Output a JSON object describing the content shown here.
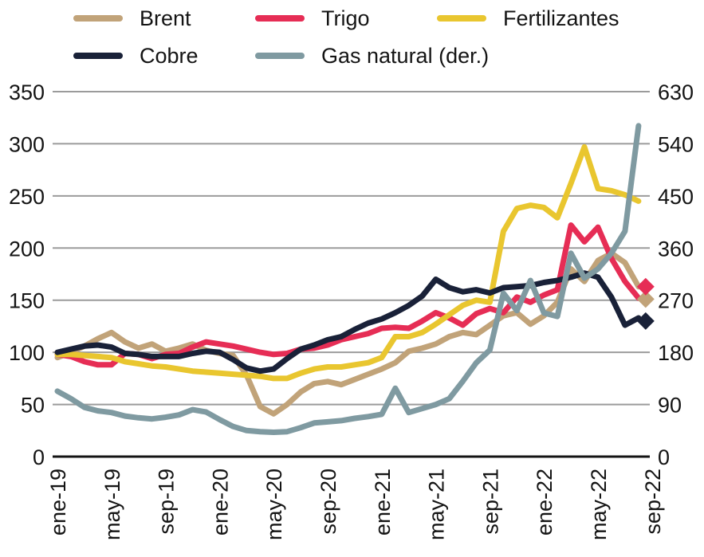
{
  "legend": {
    "items": [
      {
        "label": "Brent",
        "color": "#c1a379"
      },
      {
        "label": "Trigo",
        "color": "#e62d55"
      },
      {
        "label": "Fertilizantes",
        "color": "#e9c62f"
      },
      {
        "label": "Cobre",
        "color": "#192138"
      },
      {
        "label": "Gas natural (der.)",
        "color": "#7f9aa1"
      }
    ]
  },
  "chart_data": {
    "type": "line",
    "x_tick_labels": [
      "ene-19",
      "may-19",
      "sep-19",
      "ene-20",
      "may-20",
      "sep-20",
      "ene-21",
      "may-21",
      "sep-21",
      "ene-22",
      "may-22",
      "sep-22"
    ],
    "x_tick_month_indices": [
      0,
      4,
      8,
      12,
      16,
      20,
      24,
      28,
      32,
      36,
      40,
      44
    ],
    "months_span": "ene-19 to ago-22 lines (44 monthly points), sep-22 shown as diamond marker",
    "left_axis": {
      "ticks": [
        0,
        50,
        100,
        150,
        200,
        250,
        300,
        350
      ],
      "min": 0,
      "max": 350
    },
    "right_axis": {
      "ticks": [
        0,
        90,
        180,
        270,
        360,
        450,
        540,
        630
      ],
      "min": 0,
      "max": 630
    },
    "grid": "horizontal gridlines at every left tick",
    "legend_position": "top",
    "colors": {
      "gridline": "#9b9b9b",
      "axis_line": "#141414",
      "text": "#141414"
    },
    "series": [
      {
        "name": "Brent",
        "axis": "left",
        "color": "#c1a379",
        "values": [
          95,
          100,
          106,
          113,
          119,
          110,
          104,
          108,
          101,
          104,
          108,
          102,
          99,
          97,
          78,
          48,
          41,
          50,
          62,
          70,
          72,
          69,
          74,
          79,
          84,
          90,
          101,
          104,
          108,
          115,
          119,
          117,
          126,
          135,
          138,
          127,
          135,
          148,
          180,
          168,
          188,
          195,
          186,
          163
        ],
        "latest_diamond": 151
      },
      {
        "name": "Trigo",
        "axis": "left",
        "color": "#e62d55",
        "values": [
          98,
          96,
          91,
          88,
          88,
          99,
          98,
          94,
          98,
          99,
          105,
          110,
          108,
          106,
          103,
          100,
          98,
          99,
          103,
          104,
          107,
          112,
          115,
          118,
          123,
          124,
          123,
          130,
          138,
          133,
          126,
          137,
          142,
          138,
          153,
          148,
          155,
          160,
          222,
          206,
          220,
          190,
          168,
          152
        ],
        "latest_diamond": 163
      },
      {
        "name": "Fertilizantes",
        "axis": "left",
        "color": "#e9c62f",
        "values": [
          98,
          98,
          97,
          96,
          95,
          91,
          89,
          87,
          86,
          84,
          82,
          81,
          80,
          79,
          78,
          77,
          75,
          75,
          80,
          84,
          86,
          86,
          88,
          90,
          95,
          115,
          115,
          119,
          127,
          136,
          145,
          150,
          148,
          216,
          238,
          241,
          239,
          229,
          262,
          297,
          257,
          255,
          251,
          245
        ],
        "latest_diamond": null
      },
      {
        "name": "Cobre",
        "axis": "left",
        "color": "#192138",
        "values": [
          100,
          103,
          106,
          107,
          105,
          99,
          98,
          96,
          96,
          96,
          99,
          101,
          100,
          93,
          85,
          82,
          84,
          94,
          103,
          107,
          112,
          115,
          122,
          128,
          132,
          138,
          145,
          154,
          170,
          162,
          158,
          160,
          157,
          162,
          163,
          164,
          167,
          169,
          172,
          176,
          172,
          153,
          126,
          133
        ],
        "latest_diamond": 130
      },
      {
        "name": "Gas natural (der.)",
        "axis": "right",
        "color": "#7f9aa1",
        "values": [
          113,
          100,
          85,
          79,
          76,
          70,
          67,
          65,
          68,
          72,
          81,
          77,
          64,
          52,
          45,
          43,
          42,
          43,
          50,
          58,
          60,
          62,
          66,
          69,
          73,
          118,
          76,
          83,
          90,
          100,
          130,
          162,
          184,
          282,
          252,
          304,
          248,
          242,
          351,
          308,
          324,
          351,
          389,
          571
        ],
        "latest_diamond": null
      }
    ]
  }
}
